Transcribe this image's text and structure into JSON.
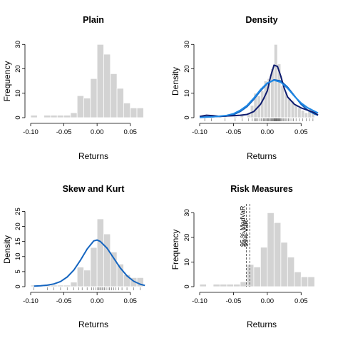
{
  "chart_data": [
    {
      "id": "plain",
      "type": "bar",
      "title": "Plain",
      "xlabel": "Returns",
      "ylabel": "Frequency",
      "xlim": [
        -0.1,
        0.075
      ],
      "ylim": [
        0,
        33
      ],
      "xticks": [
        -0.1,
        -0.05,
        0.0,
        0.05
      ],
      "xtick_labels": [
        "-0.10",
        "-0.05",
        "0.00",
        "0.05"
      ],
      "yticks": [
        0,
        10,
        20,
        30
      ],
      "ytick_labels": [
        "0",
        "10",
        "20",
        "30"
      ],
      "bin_width": 0.01,
      "bins": [
        -0.1,
        -0.08,
        -0.07,
        -0.06,
        -0.05,
        -0.04,
        -0.03,
        -0.02,
        -0.01,
        0.0,
        0.01,
        0.02,
        0.03,
        0.04,
        0.05,
        0.06
      ],
      "values": [
        1,
        1,
        1,
        1,
        1,
        2,
        9,
        8,
        16,
        30,
        26,
        18,
        12,
        6,
        4,
        4
      ],
      "rug": false
    },
    {
      "id": "density",
      "type": "bar",
      "title": "Density",
      "xlabel": "Returns",
      "ylabel": "Density",
      "xlim": [
        -0.1,
        0.075
      ],
      "ylim": [
        0,
        33
      ],
      "xticks": [
        -0.1,
        -0.05,
        0.0,
        0.05
      ],
      "xtick_labels": [
        "-0.10",
        "-0.05",
        "0.00",
        "0.05"
      ],
      "yticks": [
        0,
        10,
        20,
        30
      ],
      "ytick_labels": [
        "0",
        "10",
        "20",
        "30"
      ],
      "bin_width": 0.005,
      "bins": [
        -0.095,
        -0.085,
        -0.065,
        -0.05,
        -0.04,
        -0.03,
        -0.025,
        -0.02,
        -0.015,
        -0.01,
        -0.005,
        0.0,
        0.005,
        0.01,
        0.015,
        0.02,
        0.025,
        0.03,
        0.035,
        0.04,
        0.045,
        0.05,
        0.055,
        0.06,
        0.065
      ],
      "values": [
        0.5,
        0.5,
        0.5,
        0.5,
        1,
        2,
        5,
        10,
        9,
        11,
        15,
        16,
        20,
        30,
        22,
        13,
        10,
        8,
        7,
        5,
        4,
        3,
        2,
        4,
        3
      ],
      "rug": true,
      "series": [
        {
          "name": "",
          "color": "#1565c0",
          "x": [
            -0.1,
            -0.09,
            -0.08,
            -0.07,
            -0.06,
            -0.05,
            -0.04,
            -0.03,
            -0.02,
            -0.01,
            0.0,
            0.01,
            0.02,
            0.03,
            0.04,
            0.05,
            0.06,
            0.07,
            0.075
          ],
          "y": [
            0.2,
            0.3,
            0.4,
            0.5,
            0.7,
            1.2,
            2.5,
            4.5,
            7.5,
            11,
            14,
            15.5,
            15,
            12.5,
            9,
            5.5,
            3,
            1.5,
            1.0
          ]
        },
        {
          "name": "",
          "color": "#0d1b6e",
          "x": [
            -0.1,
            -0.09,
            -0.08,
            -0.07,
            -0.06,
            -0.05,
            -0.04,
            -0.03,
            -0.02,
            -0.01,
            -0.005,
            0.0,
            0.005,
            0.01,
            0.015,
            0.02,
            0.025,
            0.03,
            0.04,
            0.05,
            0.06,
            0.07,
            0.075
          ],
          "y": [
            0.5,
            1.0,
            0.8,
            0.5,
            0.7,
            0.8,
            1.0,
            1.3,
            2.5,
            5.5,
            8,
            11,
            17,
            21.5,
            21,
            17,
            12,
            8.5,
            5.5,
            4,
            3,
            2,
            1.0
          ]
        },
        {
          "name": "",
          "color": "#1e88e5",
          "x": [
            -0.1,
            -0.09,
            -0.08,
            -0.07,
            -0.06,
            -0.05,
            -0.04,
            -0.03,
            -0.02,
            -0.01,
            0.0,
            0.01,
            0.02,
            0.03,
            0.04,
            0.05,
            0.06,
            0.07,
            0.075
          ],
          "y": [
            0.1,
            0.2,
            0.35,
            0.6,
            0.9,
            1.6,
            3.0,
            5.0,
            8.0,
            11.5,
            14.2,
            15.3,
            14.5,
            12,
            8.8,
            6.0,
            4.0,
            2.6,
            1.9
          ]
        }
      ]
    },
    {
      "id": "skew",
      "type": "bar",
      "title": "Skew and Kurt",
      "xlabel": "Returns",
      "ylabel": "Density",
      "xlim": [
        -0.1,
        0.075
      ],
      "ylim": [
        0,
        27
      ],
      "xticks": [
        -0.1,
        -0.05,
        0.0,
        0.05
      ],
      "xtick_labels": [
        "-0.10",
        "-0.05",
        "0.00",
        "0.05"
      ],
      "yticks": [
        0,
        5,
        10,
        15,
        20,
        25
      ],
      "ytick_labels": [
        "0",
        "5",
        "10",
        "15",
        "20",
        "25"
      ],
      "bin_width": 0.01,
      "bins": [
        -0.1,
        -0.08,
        -0.07,
        -0.06,
        -0.05,
        -0.04,
        -0.03,
        -0.02,
        -0.01,
        0.0,
        0.01,
        0.02,
        0.03,
        0.04,
        0.05,
        0.06
      ],
      "values": [
        0.5,
        0.5,
        0.5,
        0.5,
        0.5,
        1.5,
        6.5,
        5.5,
        13,
        22.5,
        17.5,
        11.5,
        7.5,
        4,
        3,
        3
      ],
      "rug": true,
      "series": [
        {
          "name": "",
          "color": "#1565c0",
          "x": [
            -0.095,
            -0.085,
            -0.075,
            -0.065,
            -0.055,
            -0.045,
            -0.035,
            -0.025,
            -0.015,
            -0.005,
            0.0,
            0.005,
            0.015,
            0.025,
            0.035,
            0.045,
            0.055,
            0.065,
            0.072
          ],
          "y": [
            0.2,
            0.3,
            0.5,
            0.9,
            1.7,
            3.2,
            5.5,
            8.8,
            12.5,
            15.2,
            15.5,
            15.0,
            12.8,
            9.5,
            6.2,
            3.6,
            1.8,
            0.8,
            0.4
          ]
        }
      ]
    },
    {
      "id": "risk",
      "type": "bar",
      "title": "Risk Measures",
      "xlabel": "Returns",
      "ylabel": "Frequency",
      "xlim": [
        -0.1,
        0.075
      ],
      "ylim": [
        0,
        33
      ],
      "xticks": [
        -0.1,
        -0.05,
        0.0,
        0.05
      ],
      "xtick_labels": [
        "-0.10",
        "-0.05",
        "0.00",
        "0.05"
      ],
      "yticks": [
        0,
        10,
        20,
        30
      ],
      "ytick_labels": [
        "0",
        "10",
        "20",
        "30"
      ],
      "bin_width": 0.01,
      "bins": [
        -0.1,
        -0.08,
        -0.07,
        -0.06,
        -0.05,
        -0.04,
        -0.03,
        -0.02,
        -0.01,
        0.0,
        0.01,
        0.02,
        0.03,
        0.04,
        0.05,
        0.06
      ],
      "values": [
        1,
        1,
        1,
        1,
        1,
        2,
        9,
        8,
        16,
        30,
        26,
        18,
        12,
        6,
        4,
        4
      ],
      "rug": false,
      "vlines": [
        {
          "label": "95 % ModVaR",
          "x": -0.031
        },
        {
          "label": "95% VaR",
          "x": -0.026
        }
      ]
    }
  ]
}
